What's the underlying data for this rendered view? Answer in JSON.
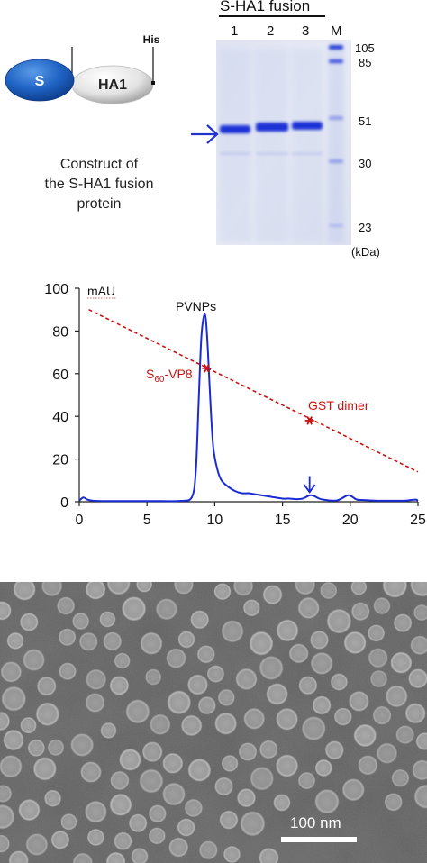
{
  "construct": {
    "domain_s": "S",
    "domain_ha1": "HA1",
    "tag": "His",
    "caption_lines": [
      "Construct of",
      "the S-HA1 fusion",
      "protein"
    ]
  },
  "gel": {
    "title": "S-HA1 fusion",
    "lanes": [
      "1",
      "2",
      "3",
      "M"
    ],
    "markers": [
      "105",
      "85",
      "51",
      "30",
      "23"
    ],
    "unit": "(kDa)",
    "band_color": "#1f33d6",
    "arrow_color": "#2233cc"
  },
  "chromatogram": {
    "ylabel": "mAU",
    "peak_label": "PVNPs",
    "standard_label_main": "S",
    "standard_label_sub": "60",
    "standard_label_rest": "-VP8",
    "dimer_label": "GST dimer",
    "trace_color": "#1a2bd6",
    "standard_color": "#cc1111"
  },
  "chart_data": {
    "type": "line",
    "xlim": [
      0,
      25
    ],
    "ylim": [
      0,
      100
    ],
    "xticks": [
      "0",
      "5",
      "10",
      "15",
      "20",
      "25"
    ],
    "yticks": [
      "0",
      "20",
      "40",
      "60",
      "80",
      "100"
    ],
    "ylabel": "mAU",
    "series": [
      {
        "x": [
          0,
          0.3,
          0.6,
          1,
          2,
          4,
          6,
          7.5,
          8.3,
          8.6,
          8.8,
          9.0,
          9.2,
          9.35,
          9.5,
          9.7,
          9.9,
          10.2,
          10.5,
          11,
          11.5,
          12,
          12.5,
          13,
          14,
          15,
          15.5,
          16,
          16.5,
          17,
          17.3,
          17.6,
          18,
          19,
          19.8,
          20.1,
          20.5,
          21,
          22,
          23,
          24,
          24.8,
          25
        ],
        "y": [
          0.5,
          2,
          1,
          0.5,
          0.3,
          0.3,
          0.3,
          0.4,
          2,
          14,
          45,
          76,
          87,
          85,
          70,
          44,
          25,
          15,
          10,
          7,
          5,
          4,
          4,
          3.5,
          2.5,
          1.5,
          1.5,
          1.2,
          1.5,
          3,
          2.8,
          1.8,
          1,
          0.6,
          3,
          2.5,
          1,
          0.8,
          0.5,
          0.5,
          0.5,
          1,
          0.5
        ]
      },
      {
        "x": [
          0.7,
          25
        ],
        "y": [
          90,
          14
        ]
      }
    ],
    "points": [
      {
        "x": 9.4,
        "y": 62.5
      },
      {
        "x": 17.0,
        "y": 38
      }
    ],
    "annotation_arrow_x": 17
  },
  "micrograph": {
    "scale_label": "100 nm"
  }
}
